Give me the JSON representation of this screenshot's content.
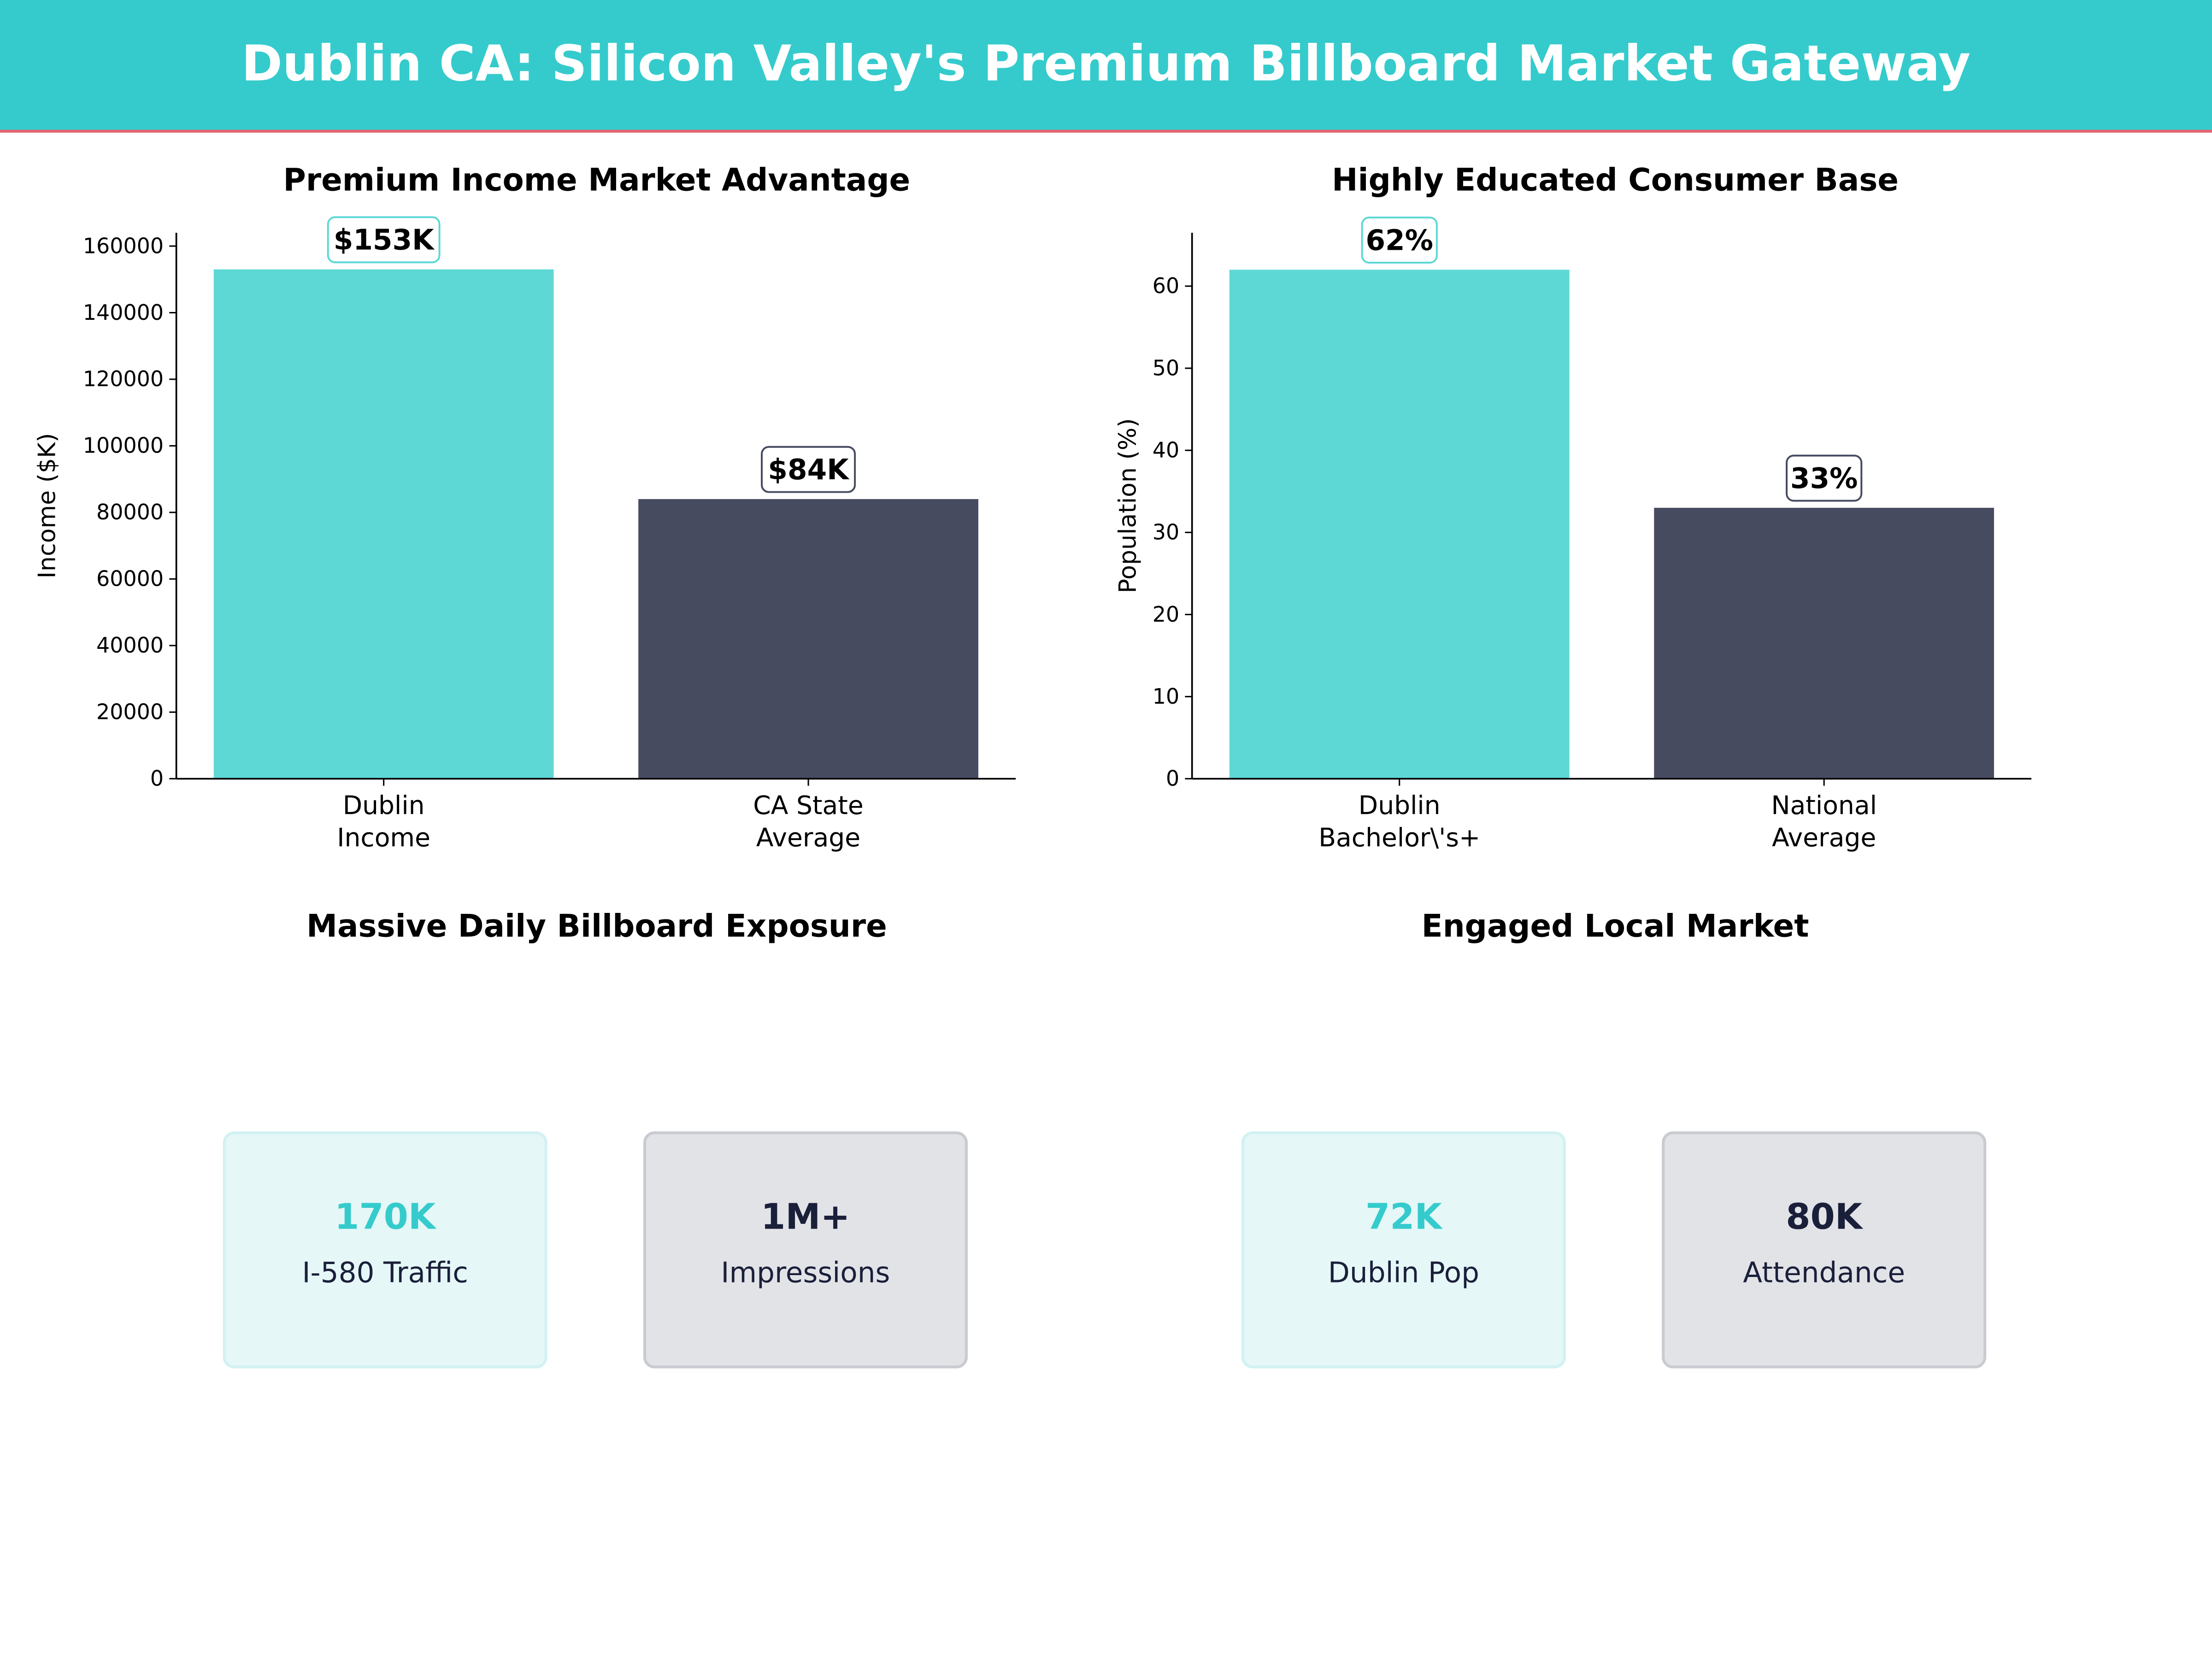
{
  "header": {
    "title": "Dublin CA: Silicon Valley's Premium Billboard Market Gateway"
  },
  "colors": {
    "header_bg": "#35CBCC",
    "header_line": "#E8616F",
    "cyan": "#5DD8D5",
    "dark": "#464B60",
    "cyan_text": "#35CBCC",
    "dark_text": "#1a1f3a"
  },
  "chart_data": [
    {
      "type": "bar",
      "title": "Premium Income Market Advantage",
      "xlabel": "",
      "ylabel": "Income ($K)",
      "categories": [
        "Dublin\nIncome",
        "CA State\nAverage"
      ],
      "values": [
        153000,
        84000
      ],
      "data_labels": [
        "$153K",
        "$84K"
      ],
      "bar_colors": [
        "#5DD8D5",
        "#464B60"
      ],
      "ylim": [
        0,
        164000
      ],
      "yticks": [
        0,
        20000,
        40000,
        60000,
        80000,
        100000,
        120000,
        140000,
        160000
      ],
      "grid": false
    },
    {
      "type": "bar",
      "title": "Highly Educated Consumer Base",
      "xlabel": "",
      "ylabel": "Population (%)",
      "categories": [
        "Dublin\nBachelor\\'s+",
        "National\nAverage"
      ],
      "values": [
        62,
        33
      ],
      "data_labels": [
        "62%",
        "33%"
      ],
      "bar_colors": [
        "#5DD8D5",
        "#464B60"
      ],
      "ylim": [
        0,
        66.5
      ],
      "yticks": [
        0,
        10,
        20,
        30,
        40,
        50,
        60
      ],
      "grid": false
    }
  ],
  "panels": [
    {
      "title": "Massive Daily Billboard Exposure",
      "cards": [
        {
          "value": "170K",
          "label": "I-580 Traffic",
          "style": "cyan"
        },
        {
          "value": "1M+",
          "label": "Impressions",
          "style": "gray"
        }
      ]
    },
    {
      "title": "Engaged Local Market",
      "cards": [
        {
          "value": "72K",
          "label": "Dublin Pop",
          "style": "cyan"
        },
        {
          "value": "80K",
          "label": "Attendance",
          "style": "gray"
        }
      ]
    }
  ]
}
